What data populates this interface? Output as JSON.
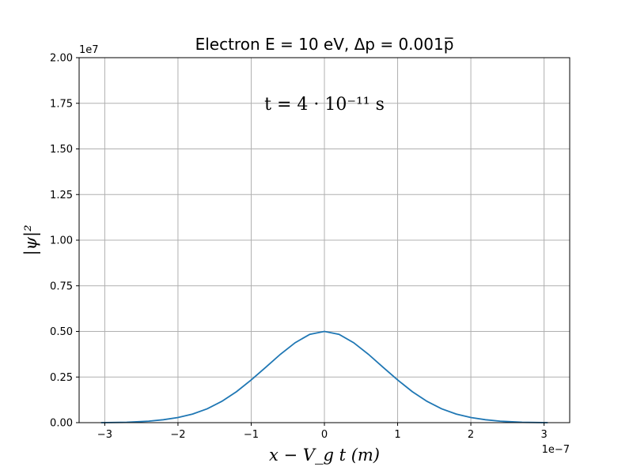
{
  "chart_data": {
    "type": "line",
    "title": "Electron E = 10 eV, Δp = 0.001p̅",
    "xlabel": "x − V_g t (m)",
    "ylabel": "|ψ|²",
    "annotation": "t = 4 · 10⁻¹¹ s",
    "x_offset_label": "1e−7",
    "y_offset_label": "1e7",
    "xlim": [
      -3.35e-07,
      3.35e-07
    ],
    "ylim": [
      0,
      20000000.0
    ],
    "x_ticks": [
      -3e-07,
      -2e-07,
      -1e-07,
      0,
      1e-07,
      2e-07,
      3e-07
    ],
    "x_tick_labels": [
      "−3",
      "−2",
      "−1",
      "0",
      "1",
      "2",
      "3"
    ],
    "y_ticks": [
      0,
      2500000.0,
      5000000.0,
      7500000.0,
      10000000.0,
      12500000.0,
      15000000.0,
      17500000.0,
      20000000.0
    ],
    "y_tick_labels": [
      "0.00",
      "0.25",
      "0.50",
      "0.75",
      "1.00",
      "1.25",
      "1.50",
      "1.75",
      "2.00"
    ],
    "grid": true,
    "line_color": "#1f77b4",
    "series": [
      {
        "x": [
          -3.05e-07,
          -2.7e-07,
          -2.4e-07,
          -2.2e-07,
          -2e-07,
          -1.8e-07,
          -1.6e-07,
          -1.4e-07,
          -1.2e-07,
          -1e-07,
          -8e-08,
          -6e-08,
          -4e-08,
          -2e-08,
          0,
          2e-08,
          4e-08,
          6e-08,
          8e-08,
          1e-07,
          1.2e-07,
          1.4e-07,
          1.6e-07,
          1.8e-07,
          2e-07,
          2.2e-07,
          2.4e-07,
          2.7e-07,
          3.05e-07
        ],
        "y": [
          0.0,
          20000.0,
          80000.0,
          160000.0,
          280000.0,
          470000.0,
          760000.0,
          1170000.0,
          1700000.0,
          2340000.0,
          3040000.0,
          3750000.0,
          4380000.0,
          4840000.0,
          5000000.0,
          4840000.0,
          4380000.0,
          3750000.0,
          3040000.0,
          2340000.0,
          1700000.0,
          1170000.0,
          760000.0,
          470000.0,
          280000.0,
          160000.0,
          80000.0,
          20000.0,
          0.0
        ]
      }
    ]
  }
}
